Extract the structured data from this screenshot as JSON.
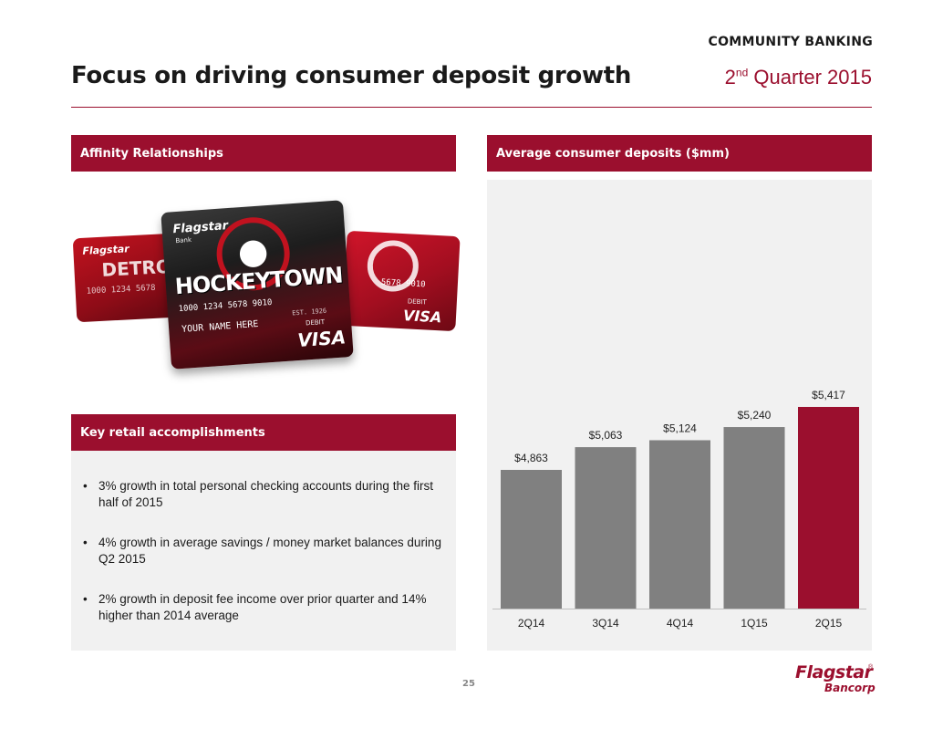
{
  "header": {
    "section": "COMMUNITY BANKING",
    "quarter_num": "2",
    "quarter_sup": "nd",
    "quarter_rest": " Quarter 2015",
    "title": "Focus on driving consumer deposit growth"
  },
  "panels": {
    "affinity": {
      "label": "Affinity Relationships"
    },
    "accomplishments": {
      "label": "Key retail accomplishments",
      "bullets": [
        "3% growth in total personal checking accounts during the first half of 2015",
        "4% growth in average savings / money market balances during Q2 2015",
        "2% growth in deposit fee income over prior quarter and 14% higher than 2014 average"
      ]
    },
    "deposits": {
      "label": "Average consumer deposits ($mm)"
    }
  },
  "cards": {
    "brand": "Flagstar",
    "brand_sub": "Bank",
    "left_text": "DETROIT",
    "center_text": "HOCKEYTOWN",
    "number_left": "1000 1234 5678",
    "number_right": "5678 9010",
    "center_number": "1000 1234 5678 9010",
    "name": "YOUR NAME HERE",
    "debit": "DEBIT",
    "visa": "VISA",
    "est": "EST. 1926"
  },
  "chart_data": {
    "type": "bar",
    "categories": [
      "2Q14",
      "3Q14",
      "4Q14",
      "1Q15",
      "2Q15"
    ],
    "values": [
      4863,
      5063,
      5124,
      5240,
      5417
    ],
    "labels": [
      "$4,863",
      "$5,063",
      "$5,124",
      "$5,240",
      "$5,417"
    ],
    "title": "",
    "xlabel": "",
    "ylabel": "",
    "bar_color": "#808080",
    "highlight_color": "#9b0f2e",
    "highlight_index": 4,
    "grid": false
  },
  "footer": {
    "page": "25",
    "logo_main": "Flagstar",
    "logo_sub": "Bancorp",
    "logo_reg": "®"
  },
  "colors": {
    "accent": "#9b0f2e",
    "panel_bg": "#f1f1f1"
  }
}
